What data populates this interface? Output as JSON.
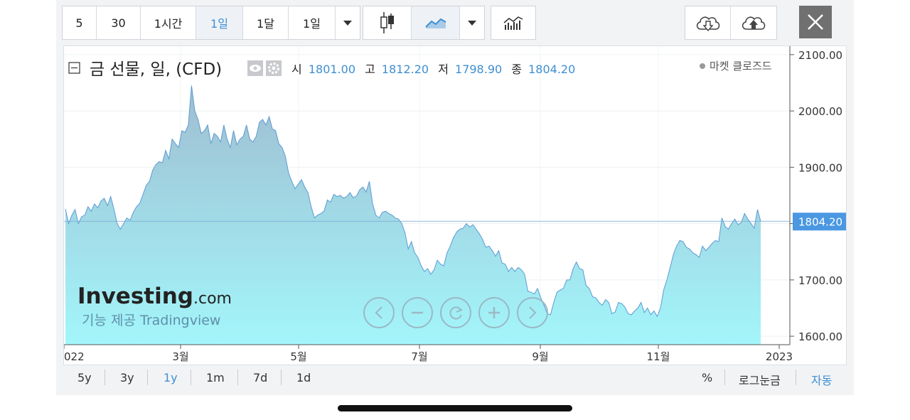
{
  "toolbar": {
    "intervals": [
      "5",
      "30",
      "1시간",
      "1일",
      "1달",
      "1일"
    ],
    "active_interval_index": 3
  },
  "header": {
    "title": "금 선물, 일, (CFD)",
    "open_label": "시",
    "open": "1801.00",
    "high_label": "고",
    "high": "1812.20",
    "low_label": "저",
    "low": "1798.90",
    "close_label": "종",
    "close": "1804.20",
    "market_status": "마켓 클로즈드"
  },
  "watermark": {
    "brand": "Investing",
    "brand_suffix": ".com",
    "powered_by": "기능 제공 Tradingview"
  },
  "bottom": {
    "ranges": [
      "5y",
      "3y",
      "1y",
      "1m",
      "7d",
      "1d"
    ],
    "active_range": "1y",
    "percent": "%",
    "log_scale": "로그눈금",
    "auto": "자동"
  },
  "colors": {
    "accent": "#3f8fd2",
    "area_top": "#9fbdd0",
    "area_bottom": "#a3f6fb",
    "line": "#5b9bd5"
  },
  "chart_data": {
    "type": "area",
    "y_ticks": [
      "1600.00",
      "1700.00",
      "1800.00",
      "1900.00",
      "2000.00",
      "2100.00"
    ],
    "ylim": [
      1585,
      2115
    ],
    "x_ticks": [
      "022",
      "3월",
      "5월",
      "7월",
      "9월",
      "11월",
      "2023"
    ],
    "last_price_label": "1804.20",
    "last_price": 1804.2,
    "series": [
      {
        "values": [
          1826,
          1800,
          1815,
          1825,
          1800,
          1812,
          1815,
          1830,
          1822,
          1835,
          1828,
          1840,
          1845,
          1832,
          1848,
          1826,
          1800,
          1790,
          1800,
          1810,
          1806,
          1820,
          1830,
          1836,
          1852,
          1868,
          1875,
          1895,
          1905,
          1910,
          1908,
          1930,
          1915,
          1950,
          1942,
          1935,
          1965,
          1962,
          1975,
          2045,
          2000,
          1985,
          1960,
          1965,
          1975,
          1942,
          1960,
          1955,
          1945,
          1975,
          1950,
          1935,
          1965,
          1940,
          1950,
          1955,
          1975,
          1950,
          1945,
          1955,
          1980,
          1985,
          1975,
          1990,
          1968,
          1965,
          1942,
          1935,
          1920,
          1890,
          1875,
          1862,
          1870,
          1878,
          1865,
          1855,
          1830,
          1810,
          1815,
          1818,
          1822,
          1842,
          1838,
          1852,
          1848,
          1850,
          1845,
          1848,
          1855,
          1846,
          1849,
          1860,
          1865,
          1856,
          1875,
          1835,
          1815,
          1810,
          1820,
          1822,
          1818,
          1815,
          1810,
          1808,
          1800,
          1784,
          1755,
          1768,
          1748,
          1740,
          1725,
          1715,
          1720,
          1710,
          1718,
          1735,
          1728,
          1725,
          1748,
          1760,
          1775,
          1785,
          1790,
          1792,
          1800,
          1794,
          1798,
          1790,
          1782,
          1772,
          1758,
          1760,
          1752,
          1742,
          1752,
          1730,
          1728,
          1715,
          1722,
          1715,
          1722,
          1718,
          1710,
          1680,
          1678,
          1675,
          1685,
          1668,
          1655,
          1640,
          1638,
          1660,
          1678,
          1682,
          1685,
          1700,
          1700,
          1720,
          1732,
          1720,
          1718,
          1690,
          1685,
          1670,
          1668,
          1660,
          1655,
          1665,
          1660,
          1640,
          1643,
          1660,
          1658,
          1652,
          1640,
          1638,
          1645,
          1650,
          1660,
          1642,
          1650,
          1638,
          1645,
          1635,
          1650,
          1682,
          1700,
          1722,
          1745,
          1760,
          1770,
          1768,
          1758,
          1755,
          1748,
          1745,
          1740,
          1760,
          1752,
          1758,
          1765,
          1770,
          1768,
          1810,
          1795,
          1790,
          1800,
          1808,
          1798,
          1802,
          1818,
          1808,
          1800,
          1792,
          1825,
          1804
        ]
      }
    ]
  }
}
